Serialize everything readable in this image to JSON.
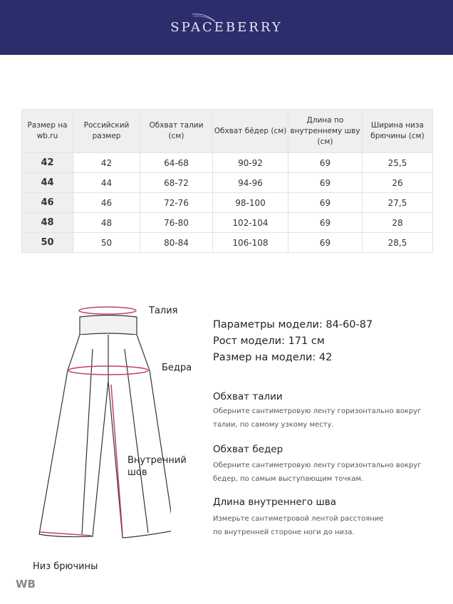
{
  "brand": "SPACEBERRY",
  "table": {
    "headers": [
      "Размер на wb.ru",
      "Российский размер",
      "Обхват талии (см)",
      "Обхват бёдер (см)",
      "Длина по внутреннему шву (см)",
      "Ширина низа брючины (см)"
    ],
    "rows": [
      [
        "42",
        "42",
        "64-68",
        "90-92",
        "69",
        "25,5"
      ],
      [
        "44",
        "44",
        "68-72",
        "94-96",
        "69",
        "26"
      ],
      [
        "46",
        "46",
        "72-76",
        "98-100",
        "69",
        "27,5"
      ],
      [
        "48",
        "48",
        "76-80",
        "102-104",
        "69",
        "28"
      ],
      [
        "50",
        "50",
        "80-84",
        "106-108",
        "69",
        "28,5"
      ]
    ]
  },
  "diagram": {
    "waist": "Талия",
    "hips": "Бедра",
    "inseam": "Внутренний шов",
    "hem": "Низ брючины",
    "accent": "#c0406a"
  },
  "model": {
    "params": "Параметры модели: 84-60-87",
    "height": "Рост модели: 171 см",
    "size": "Размер на модели: 42"
  },
  "instructions": [
    {
      "title": "Обхват талии",
      "text": "Оберните сантиметровую ленту горизонтально вокруг талии, по самому узкому месту."
    },
    {
      "title": "Обхват бедер",
      "text": "Оберните сантиметровую ленту горизонтально вокруг бедер, по самым выступающим точкам."
    },
    {
      "title": "Длина внутреннего шва",
      "text": "Измерьте сантиметровой лентой расстояние по внутренней стороне ноги до низа."
    }
  ],
  "watermark": "WB"
}
